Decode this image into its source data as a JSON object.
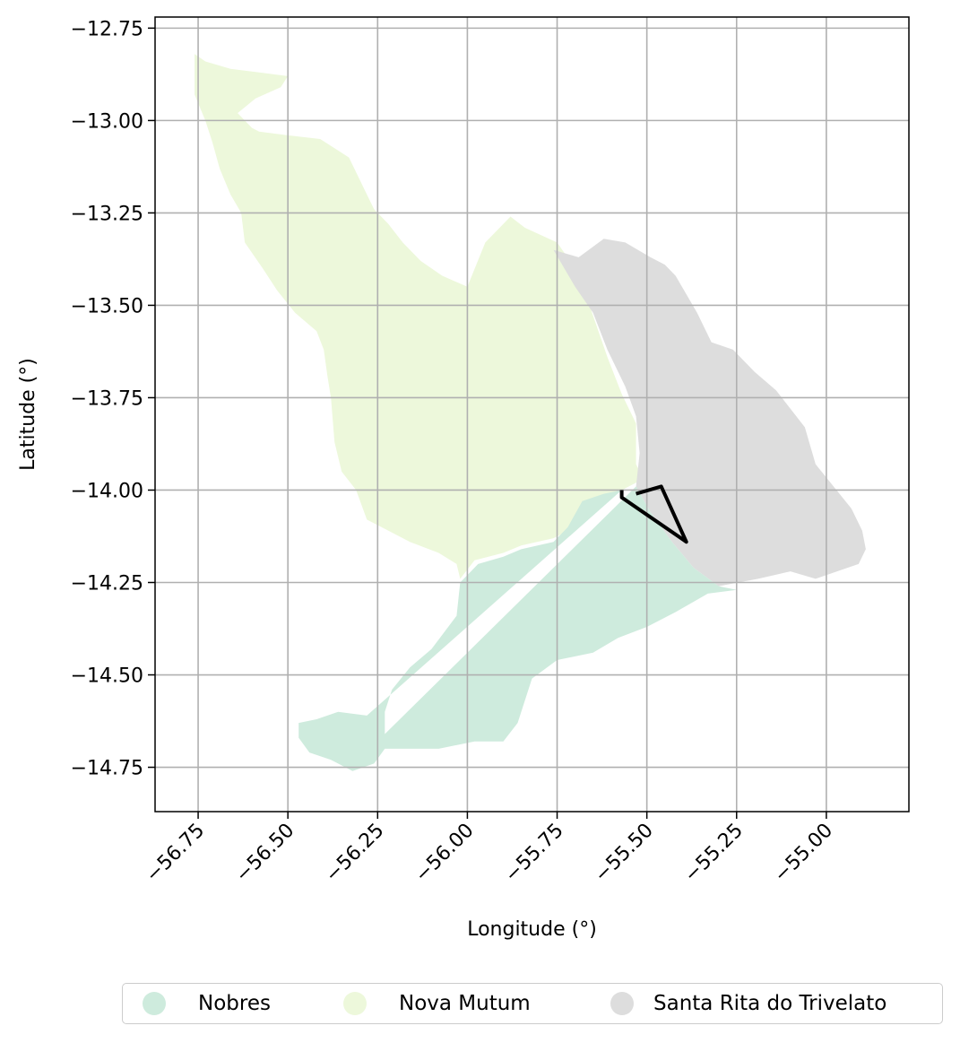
{
  "map": {
    "xlabel": "Longitude (°)",
    "ylabel": "Latitude (°)",
    "xlim": [
      -56.87,
      -54.77
    ],
    "ylim": [
      -14.87,
      -12.72
    ],
    "xticks": [
      -56.75,
      -56.5,
      -56.25,
      -56.0,
      -55.75,
      -55.5,
      -55.25,
      -55.0
    ],
    "xtick_labels": [
      "−56.75",
      "−56.50",
      "−56.25",
      "−56.00",
      "−55.75",
      "−55.50",
      "−55.25",
      "−55.00"
    ],
    "yticks": [
      -12.75,
      -13.0,
      -13.25,
      -13.5,
      -13.75,
      -14.0,
      -14.25,
      -14.5,
      -14.75
    ],
    "ytick_labels": [
      "−12.75",
      "−13.00",
      "−13.25",
      "−13.50",
      "−13.75",
      "−14.00",
      "−14.25",
      "−14.50",
      "−14.75"
    ],
    "grid": true,
    "regions": [
      {
        "name": "Nova Mutum",
        "color": "#edf8db",
        "polygon": [
          [
            -56.76,
            -12.82
          ],
          [
            -56.73,
            -12.84
          ],
          [
            -56.66,
            -12.86
          ],
          [
            -56.58,
            -12.87
          ],
          [
            -56.5,
            -12.88
          ],
          [
            -56.52,
            -12.91
          ],
          [
            -56.59,
            -12.94
          ],
          [
            -56.64,
            -12.98
          ],
          [
            -56.6,
            -13.02
          ],
          [
            -56.58,
            -13.03
          ],
          [
            -56.5,
            -13.04
          ],
          [
            -56.41,
            -13.05
          ],
          [
            -56.33,
            -13.1
          ],
          [
            -56.29,
            -13.18
          ],
          [
            -56.26,
            -13.24
          ],
          [
            -56.22,
            -13.28
          ],
          [
            -56.18,
            -13.33
          ],
          [
            -56.13,
            -13.38
          ],
          [
            -56.07,
            -13.42
          ],
          [
            -56.0,
            -13.45
          ],
          [
            -55.95,
            -13.33
          ],
          [
            -55.88,
            -13.26
          ],
          [
            -55.84,
            -13.29
          ],
          [
            -55.75,
            -13.33
          ],
          [
            -55.7,
            -13.4
          ],
          [
            -55.66,
            -13.5
          ],
          [
            -55.61,
            -13.64
          ],
          [
            -55.57,
            -13.74
          ],
          [
            -55.53,
            -13.82
          ],
          [
            -55.53,
            -13.93
          ],
          [
            -55.51,
            -13.97
          ],
          [
            -55.57,
            -14.0
          ],
          [
            -55.62,
            -14.02
          ],
          [
            -55.7,
            -14.1
          ],
          [
            -55.76,
            -14.13
          ],
          [
            -55.85,
            -14.15
          ],
          [
            -55.9,
            -14.17
          ],
          [
            -55.98,
            -14.19
          ],
          [
            -56.02,
            -14.24
          ],
          [
            -56.03,
            -14.2
          ],
          [
            -56.08,
            -14.17
          ],
          [
            -56.16,
            -14.14
          ],
          [
            -56.22,
            -14.11
          ],
          [
            -56.28,
            -14.08
          ],
          [
            -56.31,
            -14.0
          ],
          [
            -56.35,
            -13.95
          ],
          [
            -56.37,
            -13.87
          ],
          [
            -56.38,
            -13.75
          ],
          [
            -56.39,
            -13.69
          ],
          [
            -56.4,
            -13.62
          ],
          [
            -56.42,
            -13.57
          ],
          [
            -56.48,
            -13.52
          ],
          [
            -56.53,
            -13.46
          ],
          [
            -56.57,
            -13.4
          ],
          [
            -56.62,
            -13.33
          ],
          [
            -56.63,
            -13.25
          ],
          [
            -56.66,
            -13.2
          ],
          [
            -56.69,
            -13.13
          ],
          [
            -56.71,
            -13.06
          ],
          [
            -56.73,
            -13.0
          ],
          [
            -56.76,
            -12.93
          ]
        ]
      },
      {
        "name": "Santa Rita do Trivelato",
        "color": "#dddddd",
        "polygon": [
          [
            -55.76,
            -13.35
          ],
          [
            -55.69,
            -13.37
          ],
          [
            -55.62,
            -13.32
          ],
          [
            -55.56,
            -13.33
          ],
          [
            -55.49,
            -13.37
          ],
          [
            -55.45,
            -13.39
          ],
          [
            -55.42,
            -13.42
          ],
          [
            -55.36,
            -13.52
          ],
          [
            -55.32,
            -13.6
          ],
          [
            -55.26,
            -13.62
          ],
          [
            -55.2,
            -13.68
          ],
          [
            -55.14,
            -13.73
          ],
          [
            -55.06,
            -13.83
          ],
          [
            -55.03,
            -13.93
          ],
          [
            -54.98,
            -13.99
          ],
          [
            -54.93,
            -14.05
          ],
          [
            -54.9,
            -14.11
          ],
          [
            -54.89,
            -14.16
          ],
          [
            -54.91,
            -14.2
          ],
          [
            -54.97,
            -14.22
          ],
          [
            -55.03,
            -14.24
          ],
          [
            -55.1,
            -14.22
          ],
          [
            -55.19,
            -14.24
          ],
          [
            -55.3,
            -14.26
          ],
          [
            -55.37,
            -14.21
          ],
          [
            -55.43,
            -14.14
          ],
          [
            -55.49,
            -14.06
          ],
          [
            -55.53,
            -13.99
          ],
          [
            -55.52,
            -13.9
          ],
          [
            -55.53,
            -13.8
          ],
          [
            -55.56,
            -13.72
          ],
          [
            -55.61,
            -13.62
          ],
          [
            -55.65,
            -13.52
          ],
          [
            -55.7,
            -13.45
          ]
        ]
      },
      {
        "name": "Nobres",
        "color": "#ceebdd",
        "polygon": [
          [
            -55.53,
            -13.99
          ],
          [
            -55.49,
            -14.06
          ],
          [
            -55.43,
            -14.14
          ],
          [
            -55.37,
            -14.21
          ],
          [
            -55.3,
            -14.26
          ],
          [
            -55.25,
            -14.27
          ],
          [
            -55.33,
            -14.28
          ],
          [
            -55.42,
            -14.33
          ],
          [
            -55.5,
            -14.37
          ],
          [
            -55.58,
            -14.4
          ],
          [
            -55.65,
            -14.44
          ],
          [
            -55.75,
            -14.46
          ],
          [
            -55.82,
            -14.51
          ],
          [
            -55.84,
            -14.57
          ],
          [
            -55.86,
            -14.63
          ],
          [
            -55.9,
            -14.68
          ],
          [
            -55.98,
            -14.68
          ],
          [
            -56.08,
            -14.7
          ],
          [
            -56.19,
            -14.7
          ],
          [
            -56.23,
            -14.66
          ],
          [
            -56.23,
            -14.6
          ],
          [
            -56.21,
            -14.54
          ],
          [
            -56.16,
            -14.48
          ],
          [
            -56.1,
            -14.43
          ],
          [
            -56.03,
            -14.34
          ],
          [
            -56.02,
            -14.25
          ],
          [
            -55.97,
            -14.2
          ],
          [
            -55.9,
            -14.18
          ],
          [
            -55.85,
            -14.16
          ],
          [
            -55.76,
            -14.14
          ],
          [
            -55.72,
            -14.1
          ],
          [
            -55.68,
            -14.03
          ],
          [
            -55.62,
            -14.01
          ],
          [
            -55.57,
            -14.0
          ],
          [
            -56.28,
            -14.61
          ],
          [
            -56.36,
            -14.6
          ],
          [
            -56.42,
            -14.62
          ],
          [
            -56.47,
            -14.63
          ],
          [
            -56.47,
            -14.67
          ],
          [
            -56.44,
            -14.71
          ],
          [
            -56.38,
            -14.73
          ],
          [
            -56.32,
            -14.76
          ],
          [
            -56.26,
            -14.74
          ],
          [
            -56.23,
            -14.7
          ],
          [
            -56.19,
            -14.7
          ],
          [
            -56.23,
            -14.66
          ]
        ]
      }
    ],
    "outline": [
      [
        -55.57,
        -14.0
      ],
      [
        -55.57,
        -14.02
      ],
      [
        -55.39,
        -14.14
      ],
      [
        -55.46,
        -13.99
      ],
      [
        -55.53,
        -14.01
      ]
    ]
  },
  "legend": {
    "items": [
      {
        "label": "Nobres",
        "color": "#ceebdd"
      },
      {
        "label": "Nova Mutum",
        "color": "#edf8db"
      },
      {
        "label": "Santa Rita do Trivelato",
        "color": "#dddddd"
      }
    ]
  }
}
